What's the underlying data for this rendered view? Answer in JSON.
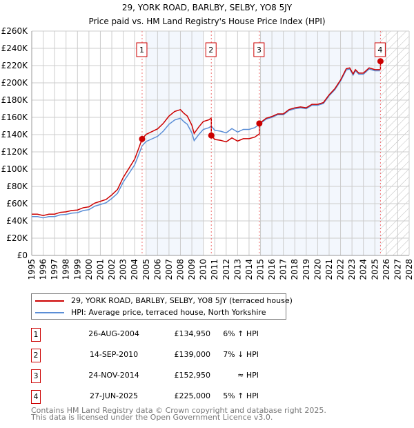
{
  "chart_data": {
    "type": "line",
    "title": "29, YORK ROAD, BARLBY, SELBY, YO8 5JY",
    "subtitle": "Price paid vs. HM Land Registry's House Price Index (HPI)",
    "xlim": [
      1995,
      2028
    ],
    "ylim": [
      0,
      260000
    ],
    "yticks": [
      0,
      20000,
      40000,
      60000,
      80000,
      100000,
      120000,
      140000,
      160000,
      180000,
      200000,
      220000,
      240000,
      260000
    ],
    "ytick_labels": [
      "£0",
      "£20K",
      "£40K",
      "£60K",
      "£80K",
      "£100K",
      "£120K",
      "£140K",
      "£160K",
      "£180K",
      "£200K",
      "£220K",
      "£240K",
      "£260K"
    ],
    "xticks": [
      "1995",
      "1996",
      "1997",
      "1998",
      "1999",
      "2000",
      "2001",
      "2002",
      "2003",
      "2004",
      "2005",
      "2006",
      "2007",
      "2008",
      "2009",
      "2010",
      "2011",
      "2012",
      "2013",
      "2014",
      "2015",
      "2016",
      "2017",
      "2018",
      "2019",
      "2020",
      "2021",
      "2022",
      "2023",
      "2024",
      "2025",
      "2026",
      "2027",
      "2028"
    ],
    "grid": true,
    "shaded_ranges": [
      [
        2005,
        2010
      ],
      [
        2015,
        2025.5
      ]
    ],
    "forecast_hatch_from": 2025.5,
    "hpi_series": {
      "name": "HPI: Average price, terraced house, North Yorkshire",
      "color": "#5b8ed6",
      "x": [
        1995,
        1995.5,
        1996,
        1996.5,
        1997,
        1997.5,
        1998,
        1998.5,
        1999,
        1999.5,
        2000,
        2000.5,
        2001,
        2001.5,
        2002,
        2002.5,
        2003,
        2003.5,
        2004,
        2004.3,
        2004.65,
        2005,
        2005.5,
        2006,
        2006.5,
        2007,
        2007.5,
        2008,
        2008.3,
        2008.6,
        2009,
        2009.2,
        2009.6,
        2010,
        2010.5,
        2010.7,
        2011,
        2011.5,
        2012,
        2012.5,
        2013,
        2013.5,
        2014,
        2014.5,
        2014.9,
        2015.5,
        2016,
        2016.5,
        2017,
        2017.5,
        2018,
        2018.5,
        2019,
        2019.5,
        2020,
        2020.5,
        2021,
        2021.5,
        2022,
        2022.5,
        2022.8,
        2023.1,
        2023.3,
        2023.6,
        2024,
        2024.5,
        2025,
        2025.45
      ],
      "values": [
        45000,
        45000,
        43500,
        45000,
        45000,
        47000,
        47500,
        49000,
        49500,
        52000,
        53000,
        57000,
        59000,
        61000,
        66000,
        72000,
        85000,
        95000,
        105000,
        115000,
        127000,
        132000,
        135000,
        138000,
        144000,
        152000,
        157000,
        159000,
        155000,
        152000,
        142000,
        133000,
        140000,
        146000,
        148000,
        150000,
        145000,
        144000,
        142000,
        147000,
        143000,
        146000,
        146000,
        148000,
        152000,
        158000,
        160000,
        163000,
        163000,
        168000,
        170000,
        171000,
        170000,
        174000,
        174000,
        176000,
        185000,
        192000,
        202000,
        215000,
        216000,
        209000,
        214000,
        210000,
        210000,
        216000,
        214000,
        214000
      ]
    },
    "price_series": {
      "name": "29, YORK ROAD, BARLBY, SELBY, YO8 5JY (terraced house)",
      "color": "#cc0000"
    },
    "sales": [
      {
        "id": "1",
        "x": 2004.65,
        "price": 134950,
        "date": "26-AUG-2004",
        "price_label": "£134,950",
        "hpi_label": "6% ↑ HPI"
      },
      {
        "id": "2",
        "x": 2010.7,
        "price": 139000,
        "date": "14-SEP-2010",
        "price_label": "£139,000",
        "hpi_label": "7% ↓ HPI"
      },
      {
        "id": "3",
        "x": 2014.9,
        "price": 152950,
        "date": "24-NOV-2014",
        "price_label": "£152,950",
        "hpi_label": "≈ HPI"
      },
      {
        "id": "4",
        "x": 2025.49,
        "price": 225000,
        "date": "27-JUN-2025",
        "price_label": "£225,000",
        "hpi_label": "5% ↑ HPI"
      }
    ]
  },
  "legend": {
    "price": "29, YORK ROAD, BARLBY, SELBY, YO8 5JY (terraced house)",
    "hpi": "HPI: Average price, terraced house, North Yorkshire",
    "price_color": "#cc0000",
    "hpi_color": "#5b8ed6"
  },
  "footer": {
    "line1": "Contains HM Land Registry data © Crown copyright and database right 2025.",
    "line2": "This data is licensed under the Open Government Licence v3.0."
  }
}
